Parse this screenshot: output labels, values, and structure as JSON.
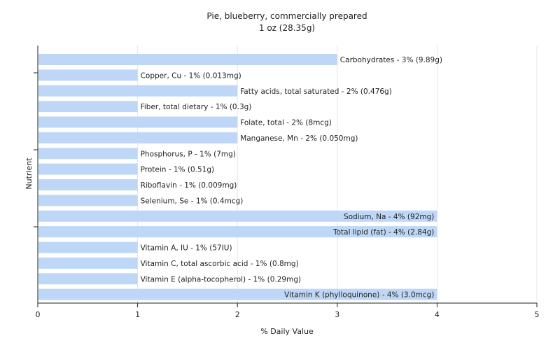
{
  "chart_data": {
    "type": "bar",
    "orientation": "horizontal",
    "title": "Pie, blueberry, commercially prepared",
    "subtitle": "1 oz (28.35g)",
    "xlabel": "% Daily Value",
    "ylabel": "Nutrient",
    "xlim": [
      0,
      5
    ],
    "xticks": [
      "0",
      "1",
      "2",
      "3",
      "4",
      "5"
    ],
    "grid": true,
    "bar_color": "#bfd7f7",
    "categories": [
      "Carbohydrates",
      "Copper, Cu",
      "Fatty acids, total saturated",
      "Fiber, total dietary",
      "Folate, total",
      "Manganese, Mn",
      "Phosphorus, P",
      "Protein",
      "Riboflavin",
      "Selenium, Se",
      "Sodium, Na",
      "Total lipid (fat)",
      "Vitamin A, IU",
      "Vitamin C, total ascorbic acid",
      "Vitamin E (alpha-tocopherol)",
      "Vitamin K (phylloquinone)"
    ],
    "values": [
      3,
      1,
      2,
      1,
      2,
      2,
      1,
      1,
      1,
      1,
      4,
      4,
      1,
      1,
      1,
      4
    ],
    "labels": [
      "Carbohydrates - 3% (9.89g)",
      "Copper, Cu - 1% (0.013mg)",
      "Fatty acids, total saturated - 2% (0.476g)",
      "Fiber, total dietary - 1% (0.3g)",
      "Folate, total - 2% (8mcg)",
      "Manganese, Mn - 2% (0.050mg)",
      "Phosphorus, P - 1% (7mg)",
      "Protein - 1% (0.51g)",
      "Riboflavin - 1% (0.009mg)",
      "Selenium, Se - 1% (0.4mcg)",
      "Sodium, Na - 4% (92mg)",
      "Total lipid (fat) - 4% (2.84g)",
      "Vitamin A, IU - 1% (57IU)",
      "Vitamin C, total ascorbic acid - 1% (0.8mg)",
      "Vitamin E (alpha-tocopherol) - 1% (0.29mg)",
      "Vitamin K (phylloquinone) - 4% (3.0mcg)"
    ]
  }
}
